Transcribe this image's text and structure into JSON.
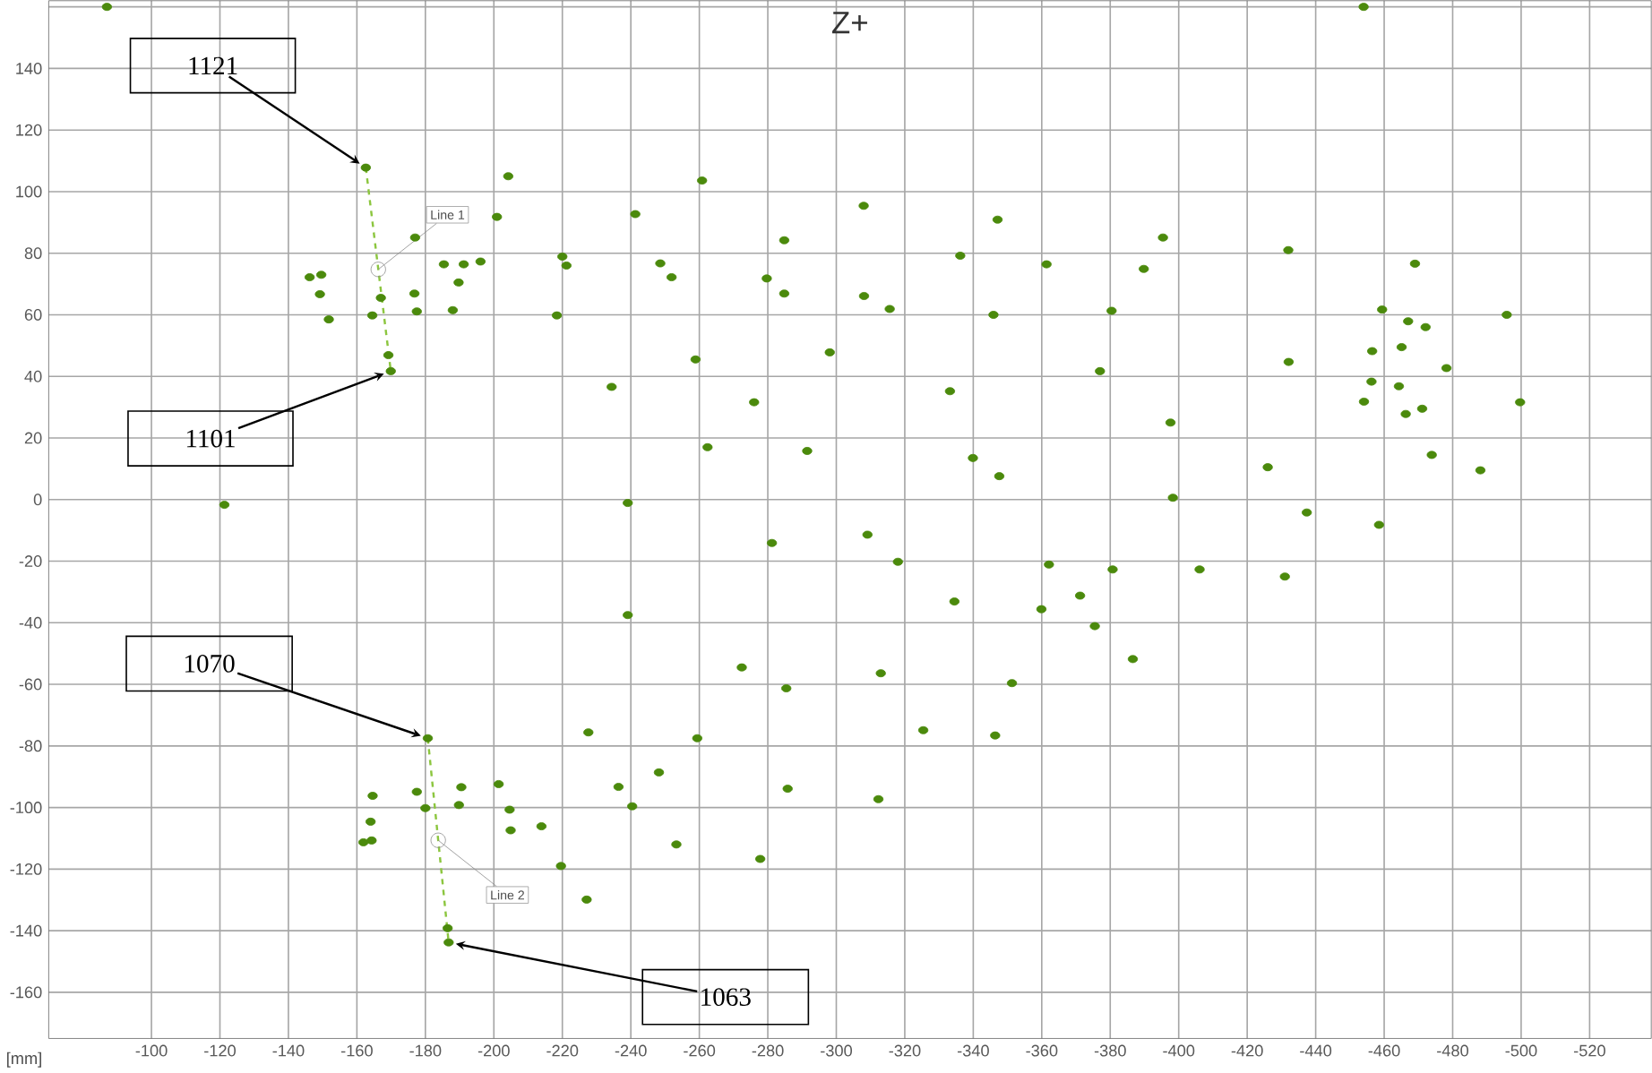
{
  "chart_data": {
    "type": "scatter",
    "title": "Z+",
    "xlabel": "[mm]",
    "xlim": [
      -70,
      -538
    ],
    "ylim": [
      -175,
      162
    ],
    "xticks": [
      -100,
      -120,
      -140,
      -160,
      -180,
      -200,
      -220,
      -240,
      -260,
      -280,
      -300,
      -320,
      -340,
      -360,
      -380,
      -400,
      -420,
      -440,
      -460,
      -480,
      -500,
      -520
    ],
    "yticks": [
      -160,
      -140,
      -120,
      -100,
      -80,
      -60,
      -40,
      -20,
      0,
      20,
      40,
      60,
      80,
      100,
      120,
      140,
      {
        "value": 160,
        "label": null
      }
    ],
    "grid": true,
    "series": [
      {
        "color": "#4b8a0c",
        "marker": "circle",
        "x": [
          -87,
          -162.6,
          -204.2,
          -200.9,
          -177,
          -146.2,
          -149.6,
          -149.2,
          -151.8,
          -167,
          -164.5,
          -176.8,
          -177.5,
          -185.4,
          -191.2,
          -196.1,
          -189.7,
          -188,
          -220,
          -221.2,
          -218.4,
          -169.2,
          -169.9,
          -121.3,
          -260.8,
          -241.3,
          -308,
          -347.1,
          -284.8,
          -248.6,
          -251.9,
          -279.7,
          -284.8,
          -308.1,
          -315.6,
          -336.2,
          -361.4,
          -345.9,
          -380.4,
          -258.9,
          -298.1,
          -234.4,
          -276,
          -333.2,
          -377,
          -262.4,
          -291.5,
          -339.9,
          -347.6,
          -239.1,
          -454,
          -395.4,
          -389.8,
          -432,
          -469,
          -459.4,
          -467,
          -472.1,
          -495.8,
          -456.5,
          -465.1,
          -478.2,
          -432.1,
          -456.3,
          -464.3,
          -454.1,
          -466.3,
          -471.1,
          -499.7,
          -397.6,
          -426,
          -473.9,
          -488.1,
          -398.3,
          -437.4,
          -458.5,
          -380.7,
          -406.1,
          -431,
          -375.5,
          -386.6,
          -281.2,
          -309.1,
          -318,
          -362.1,
          -334.5,
          -359.9,
          -371.2,
          -239.1,
          -272.4,
          -285.4,
          -313,
          -351.3,
          -227.6,
          -259.4,
          -325.4,
          -346.4,
          -248.2,
          -236.4,
          -240.4,
          -285.8,
          -312.3,
          -253.3,
          -277.8,
          -227.1,
          -180.7,
          -164.6,
          -177.5,
          -180,
          -190.5,
          -189.8,
          -201.4,
          -204.6,
          -204.9,
          -213.9,
          -164,
          -161.9,
          -164.3,
          -219.6,
          -186.5,
          -186.8
        ],
        "values": [
          160,
          107.8,
          105,
          91.8,
          85.1,
          72.2,
          73,
          66.7,
          58.5,
          65.5,
          59.8,
          66.9,
          61.1,
          76.4,
          76.4,
          77.3,
          70.5,
          61.5,
          78.9,
          76,
          59.8,
          46.9,
          41.7,
          -1.7,
          103.6,
          92.7,
          95.4,
          90.9,
          84.2,
          76.7,
          72.2,
          71.8,
          66.9,
          66.1,
          61.9,
          79.2,
          76.4,
          60,
          61.3,
          45.5,
          47.8,
          36.6,
          31.6,
          35.2,
          41.7,
          17,
          15.8,
          13.5,
          7.6,
          -1.1,
          160,
          85.1,
          74.9,
          81,
          76.6,
          61.7,
          57.9,
          56,
          60,
          48.2,
          49.5,
          42.7,
          44.7,
          38.3,
          36.8,
          31.8,
          27.8,
          29.5,
          31.6,
          25,
          10.5,
          14.5,
          9.5,
          0.6,
          -4.2,
          -8.2,
          -22.7,
          -22.7,
          -25,
          -41.1,
          -51.8,
          -14.1,
          -11.4,
          -20.2,
          -21.1,
          -33.1,
          -35.6,
          -31.2,
          -37.5,
          -54.5,
          -61.3,
          -56.4,
          -59.6,
          -75.6,
          -77.5,
          -74.9,
          -76.6,
          -88.6,
          -93.3,
          -99.6,
          -93.9,
          -97.3,
          -112,
          -116.7,
          -129.9,
          -77.5,
          -96.2,
          -94.9,
          -100.2,
          -93.4,
          -99.2,
          -92.4,
          -100.7,
          -107.4,
          -106.1,
          -104.6,
          -111.3,
          -110.7,
          -119,
          -139.2,
          -143.8
        ]
      },
      {
        "name": "Line 1",
        "type": "line",
        "line_style": "dashed",
        "marker": "none",
        "color": "#8cc63f",
        "x": [
          -162.6,
          -169.9
        ],
        "values": [
          107.8,
          41.7
        ]
      },
      {
        "name": "Line 2",
        "type": "line",
        "line_style": "dashed",
        "marker": "none",
        "color": "#8cc63f",
        "x": [
          -180.7,
          -186.8
        ],
        "values": [
          -77.5,
          -143.8
        ]
      }
    ],
    "annotations": [
      {
        "text": "1121",
        "x": -162.6,
        "y": 107.8
      },
      {
        "text": "1101",
        "x": -169.9,
        "y": 41.7
      },
      {
        "text": "1070",
        "x": -180.7,
        "y": -77.5
      },
      {
        "text": "1063",
        "x": -186.8,
        "y": -143.8
      }
    ]
  }
}
